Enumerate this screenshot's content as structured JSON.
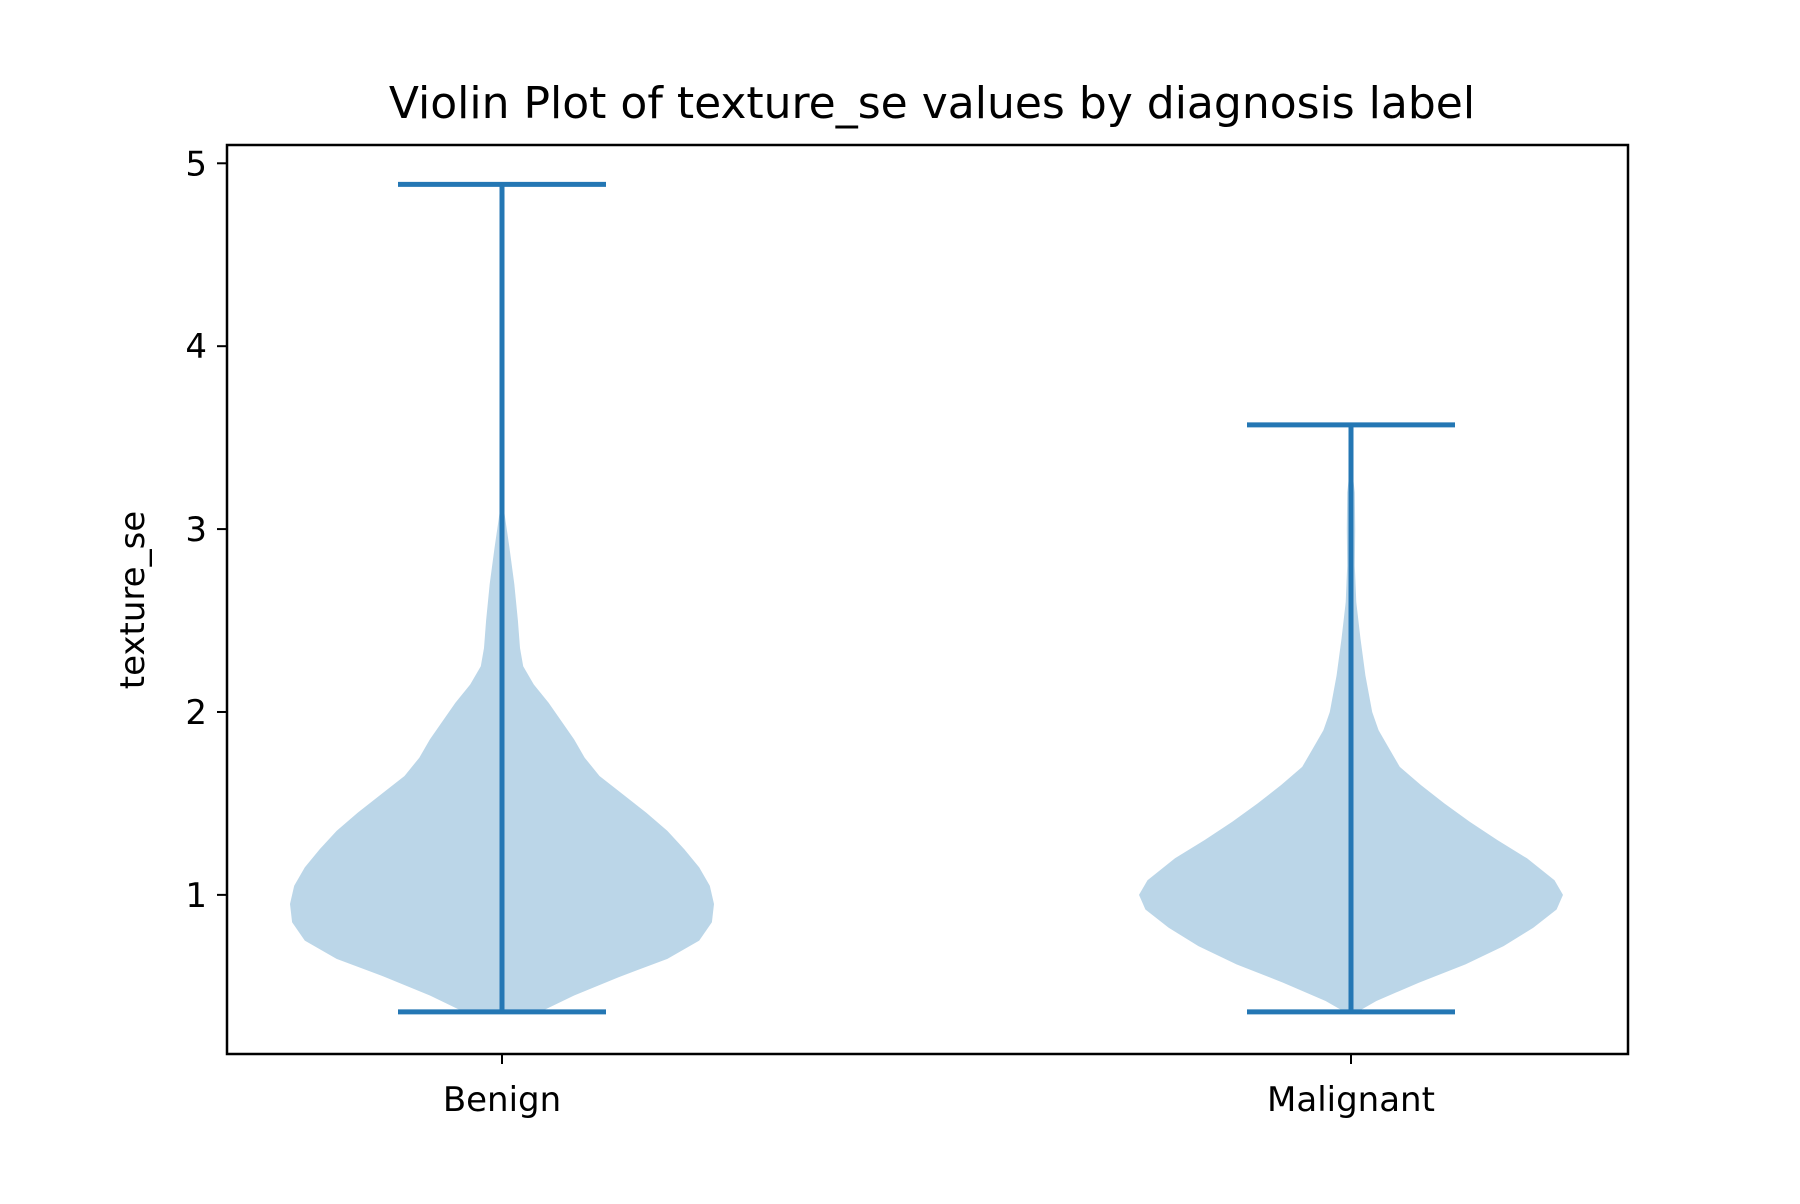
{
  "chart_data": {
    "type": "violin",
    "title": "Violin Plot of texture_se values by diagnosis label",
    "xlabel": "",
    "ylabel": "texture_se",
    "categories": [
      "Benign",
      "Malignant"
    ],
    "ylim": [
      0.13,
      5.1
    ],
    "yticks": [
      1,
      2,
      3,
      4,
      5
    ],
    "grid": false,
    "colors": {
      "body": "#bbd6e8",
      "lines": "#2477b4",
      "axes": "#000000"
    },
    "series": [
      {
        "category": "Benign",
        "min": 0.36,
        "max": 4.885,
        "density": [
          [
            0.36,
            0.18
          ],
          [
            0.45,
            0.34
          ],
          [
            0.55,
            0.55
          ],
          [
            0.65,
            0.78
          ],
          [
            0.75,
            0.93
          ],
          [
            0.85,
            0.99
          ],
          [
            0.95,
            1.0
          ],
          [
            1.05,
            0.98
          ],
          [
            1.15,
            0.93
          ],
          [
            1.25,
            0.86
          ],
          [
            1.35,
            0.78
          ],
          [
            1.45,
            0.68
          ],
          [
            1.55,
            0.57
          ],
          [
            1.65,
            0.46
          ],
          [
            1.75,
            0.39
          ],
          [
            1.85,
            0.34
          ],
          [
            1.95,
            0.28
          ],
          [
            2.05,
            0.22
          ],
          [
            2.15,
            0.15
          ],
          [
            2.25,
            0.1
          ],
          [
            2.35,
            0.085
          ],
          [
            2.5,
            0.075
          ],
          [
            2.7,
            0.058
          ],
          [
            2.9,
            0.035
          ],
          [
            3.1,
            0.01
          ],
          [
            3.18,
            0.0
          ]
        ]
      },
      {
        "category": "Malignant",
        "min": 0.36,
        "max": 3.57,
        "density": [
          [
            0.36,
            0.03
          ],
          [
            0.42,
            0.12
          ],
          [
            0.52,
            0.32
          ],
          [
            0.62,
            0.54
          ],
          [
            0.72,
            0.72
          ],
          [
            0.82,
            0.86
          ],
          [
            0.92,
            0.97
          ],
          [
            1.0,
            1.0
          ],
          [
            1.08,
            0.96
          ],
          [
            1.2,
            0.83
          ],
          [
            1.3,
            0.69
          ],
          [
            1.4,
            0.56
          ],
          [
            1.5,
            0.44
          ],
          [
            1.6,
            0.33
          ],
          [
            1.7,
            0.23
          ],
          [
            1.8,
            0.18
          ],
          [
            1.9,
            0.13
          ],
          [
            2.0,
            0.1
          ],
          [
            2.2,
            0.068
          ],
          [
            2.4,
            0.045
          ],
          [
            2.6,
            0.025
          ],
          [
            2.8,
            0.018
          ],
          [
            3.0,
            0.02
          ],
          [
            3.2,
            0.018
          ],
          [
            3.3,
            0.008
          ],
          [
            3.36,
            0.0
          ]
        ]
      }
    ]
  }
}
